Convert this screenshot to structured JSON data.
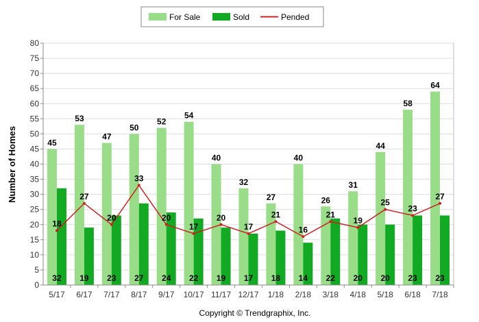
{
  "chart_data": {
    "type": "bar",
    "ylabel": "Number of Homes",
    "ylim": [
      0,
      80
    ],
    "ytick_step": 5,
    "grid": true,
    "legend_position": "top-center",
    "categories": [
      "5/17",
      "6/17",
      "7/17",
      "8/17",
      "9/17",
      "10/17",
      "11/17",
      "12/17",
      "1/18",
      "2/18",
      "3/18",
      "4/18",
      "5/18",
      "6/18",
      "7/18"
    ],
    "series": [
      {
        "name": "For Sale",
        "type": "bar",
        "color": "#99dd88",
        "values": [
          45,
          53,
          47,
          50,
          52,
          54,
          40,
          32,
          27,
          40,
          26,
          31,
          44,
          58,
          64
        ]
      },
      {
        "name": "Sold",
        "type": "bar",
        "color": "#11aa22",
        "values": [
          32,
          19,
          23,
          27,
          24,
          22,
          19,
          17,
          18,
          14,
          22,
          20,
          20,
          23,
          23
        ]
      },
      {
        "name": "Pended",
        "type": "line",
        "color": "#cc2222",
        "values": [
          18,
          27,
          20,
          33,
          20,
          17,
          20,
          17,
          21,
          16,
          21,
          19,
          25,
          23,
          27
        ]
      }
    ]
  },
  "footer": {
    "copyright": "Copyright © Trendgraphix, Inc."
  }
}
